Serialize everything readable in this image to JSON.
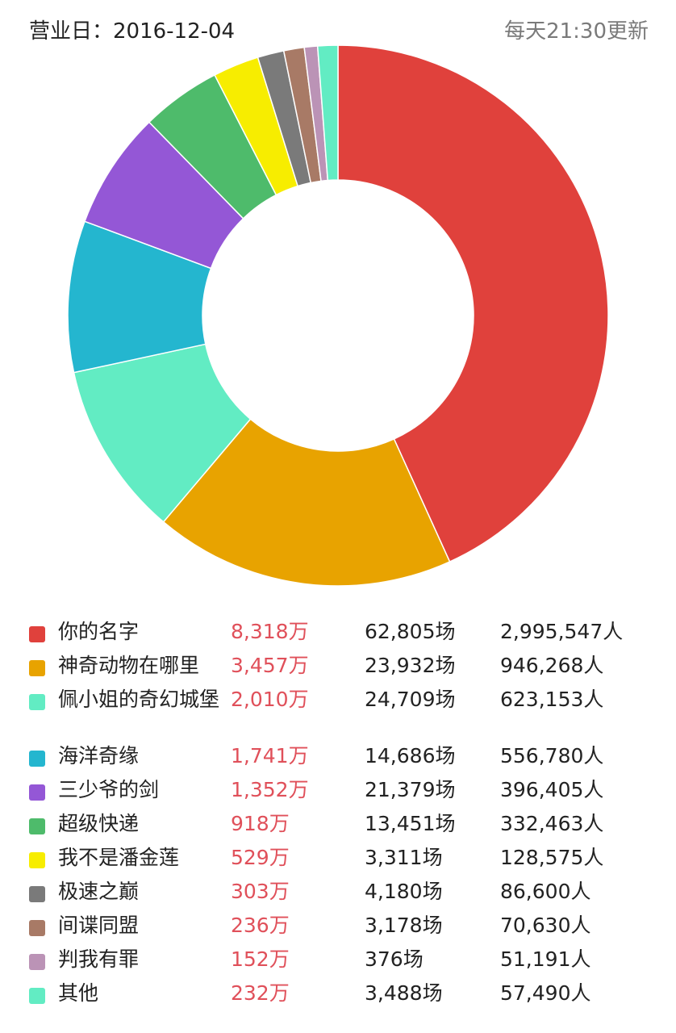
{
  "header": {
    "date_label": "营业日：2016-12-04",
    "update_label": "每天21:30更新"
  },
  "chart_data": {
    "type": "pie",
    "donut": true,
    "categories": [
      "你的名字",
      "神奇动物在哪里",
      "佩小姐的奇幻城堡",
      "海洋奇缘",
      "三少爷的剑",
      "超级快递",
      "我不是潘金莲",
      "极速之巅",
      "间谍同盟",
      "判我有罪",
      "其他"
    ],
    "values": [
      8318,
      3457,
      2010,
      1741,
      1352,
      918,
      529,
      303,
      236,
      152,
      232
    ],
    "colors": [
      "#e0413c",
      "#e8a300",
      "#62ecc3",
      "#24b6cf",
      "#9457d6",
      "#4ebb6b",
      "#f7ed00",
      "#7a7a7a",
      "#a87a66",
      "#bb93b6",
      "#62ecc3"
    ]
  },
  "legend": {
    "rows": [
      {
        "name": "你的名字",
        "box": "8,318万",
        "shows": "62,805场",
        "people": "2,995,547人"
      },
      {
        "name": "神奇动物在哪里",
        "box": "3,457万",
        "shows": "23,932场",
        "people": "946,268人"
      },
      {
        "name": "佩小姐的奇幻城堡",
        "box": "2,010万",
        "shows": "24,709场",
        "people": "623,153人"
      },
      {
        "name": "海洋奇缘",
        "box": "1,741万",
        "shows": "14,686场",
        "people": "556,780人"
      },
      {
        "name": "三少爷的剑",
        "box": "1,352万",
        "shows": "21,379场",
        "people": "396,405人"
      },
      {
        "name": "超级快递",
        "box": "918万",
        "shows": "13,451场",
        "people": "332,463人"
      },
      {
        "name": "我不是潘金莲",
        "box": "529万",
        "shows": "3,311场",
        "people": "128,575人"
      },
      {
        "name": "极速之巅",
        "box": "303万",
        "shows": "4,180场",
        "people": "86,600人"
      },
      {
        "name": "间谍同盟",
        "box": "236万",
        "shows": "3,178场",
        "people": "70,630人"
      },
      {
        "name": "判我有罪",
        "box": "152万",
        "shows": "376场",
        "people": "51,191人"
      },
      {
        "name": "其他",
        "box": "232万",
        "shows": "3,488场",
        "people": "57,490人"
      }
    ]
  }
}
